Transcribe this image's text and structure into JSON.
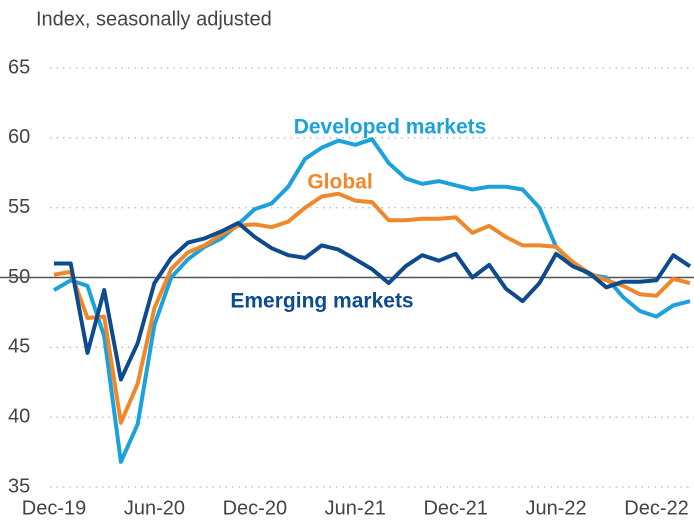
{
  "chart_data": {
    "type": "line",
    "ylabel": "Index, seasonally adjusted",
    "categories": [
      "Dec-19",
      null,
      null,
      null,
      null,
      null,
      "Jun-20",
      null,
      null,
      null,
      null,
      null,
      "Dec-20",
      null,
      null,
      null,
      null,
      null,
      "Jun-21",
      null,
      null,
      null,
      null,
      null,
      "Dec-21",
      null,
      null,
      null,
      null,
      null,
      "Jun-22",
      null,
      null,
      null,
      null,
      null,
      "Dec-22",
      null,
      null
    ],
    "series": [
      {
        "name": "Developed markets",
        "color": "#1ba1db",
        "values": [
          49.1,
          49.8,
          49.4,
          45.8,
          36.8,
          39.5,
          46.6,
          50.0,
          51.3,
          52.2,
          52.8,
          53.8,
          54.9,
          55.3,
          56.5,
          58.5,
          59.3,
          59.8,
          59.5,
          59.9,
          58.2,
          57.1,
          56.7,
          56.9,
          56.6,
          56.3,
          56.5,
          56.5,
          56.3,
          55.0,
          52.2,
          51.0,
          50.2,
          50.0,
          48.6,
          47.6,
          47.2,
          48.0,
          48.3
        ]
      },
      {
        "name": "Global",
        "color": "#f0882a",
        "values": [
          50.2,
          50.4,
          47.1,
          47.2,
          39.6,
          42.4,
          47.8,
          50.6,
          51.8,
          52.3,
          53.1,
          53.7,
          53.8,
          53.6,
          54.0,
          55.0,
          55.8,
          56.0,
          55.5,
          55.4,
          54.1,
          54.1,
          54.2,
          54.2,
          54.3,
          53.2,
          53.7,
          52.9,
          52.3,
          52.3,
          52.2,
          51.1,
          50.3,
          49.8,
          49.4,
          48.8,
          48.7,
          49.9,
          49.6
        ]
      },
      {
        "name": "Emerging markets",
        "color": "#0e4a8e",
        "values": [
          51.0,
          51.0,
          44.6,
          49.1,
          42.7,
          45.3,
          49.6,
          51.4,
          52.5,
          52.8,
          53.3,
          53.9,
          52.9,
          52.1,
          51.6,
          51.4,
          52.3,
          52.0,
          51.3,
          50.6,
          49.6,
          50.8,
          51.6,
          51.2,
          51.7,
          50.0,
          50.9,
          49.2,
          48.3,
          49.6,
          51.7,
          50.8,
          50.3,
          49.3,
          49.7,
          49.7,
          49.8,
          51.6,
          50.8
        ]
      }
    ],
    "ylim": [
      35,
      65
    ],
    "yticks": [
      35,
      40,
      45,
      50,
      55,
      60,
      65
    ],
    "grid": true,
    "reference_line": 50
  }
}
